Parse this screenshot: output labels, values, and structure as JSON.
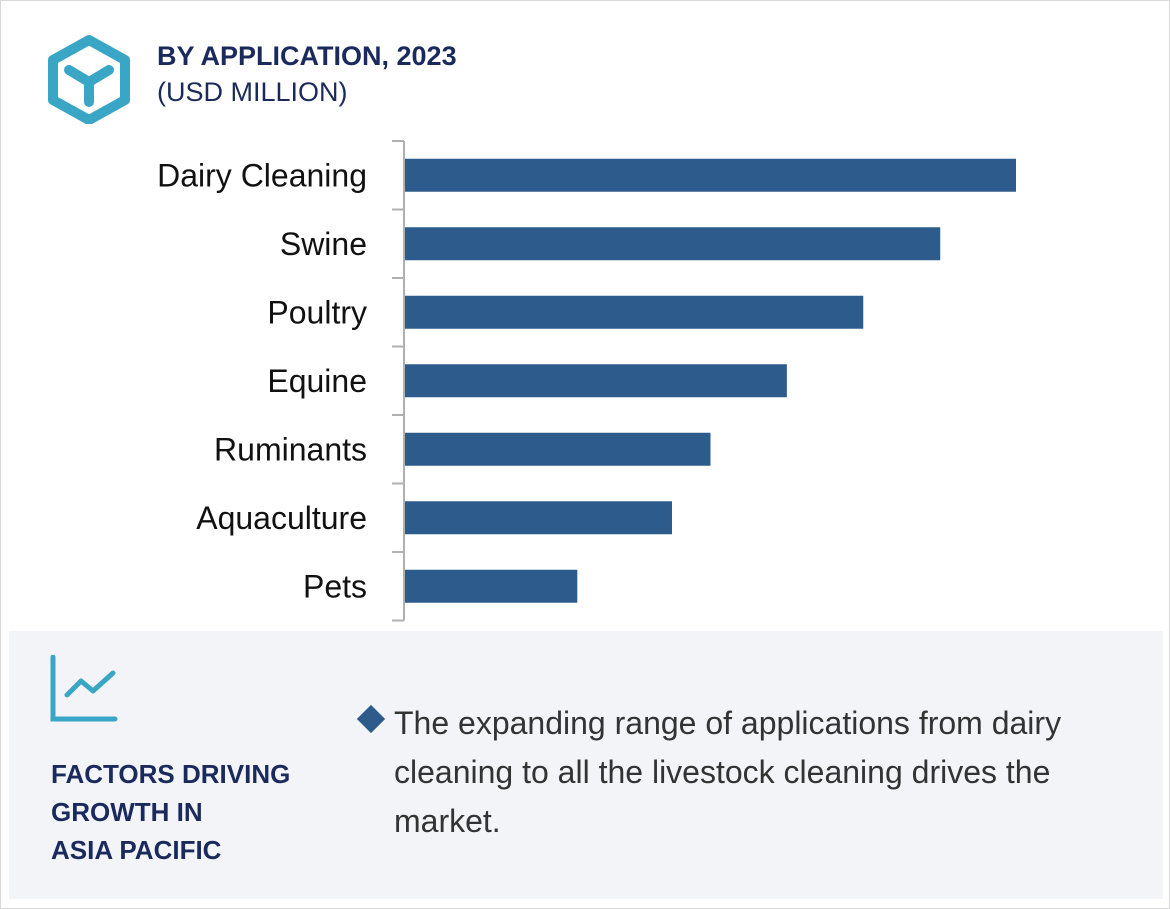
{
  "header": {
    "title": "BY APPLICATION, 2023",
    "subtitle": "(USD MILLION)",
    "icon": "cube-hexagon-icon"
  },
  "chart_data": {
    "type": "bar",
    "orientation": "horizontal",
    "title": "BY APPLICATION, 2023",
    "ylabel": "(USD MILLION)",
    "categories": [
      "Dairy Cleaning",
      "Swine",
      "Poultry",
      "Equine",
      "Ruminants",
      "Aquaculture",
      "Pets"
    ],
    "values": [
      100,
      87.6,
      75,
      62.5,
      50,
      43.7,
      28.2
    ],
    "value_note": "relative values; no value axis shown",
    "xlim": [
      0,
      100
    ],
    "grid": false,
    "bar_color": "#2d5c8c"
  },
  "footer": {
    "icon": "line-chart-icon",
    "heading_lines": [
      "FACTORS DRIVING",
      "GROWTH IN",
      "ASIA PACIFIC"
    ],
    "bullet_text": "The expanding range of applications from dairy cleaning to all the livestock cleaning drives the market."
  }
}
